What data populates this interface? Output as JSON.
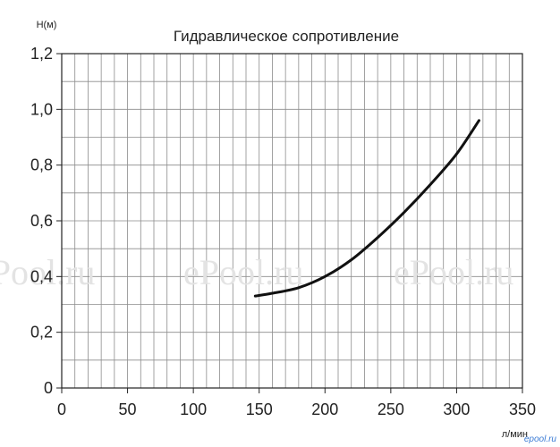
{
  "chart_data": {
    "type": "line",
    "title": "Гидравлическое сопротивление",
    "ylabel": "Н(м)",
    "xlabel": "л/мин",
    "xlim": [
      0,
      350
    ],
    "ylim": [
      0,
      1.2
    ],
    "grid": true,
    "xticks": [
      "0",
      "50",
      "100",
      "150",
      "200",
      "250",
      "300",
      "350"
    ],
    "yticks": [
      "0",
      "0,2",
      "0,4",
      "0,6",
      "0,8",
      "1,0",
      "1,2"
    ],
    "series": [
      {
        "x": [
          147,
          160,
          180,
          200,
          220,
          240,
          260,
          280,
          300,
          317
        ],
        "y": [
          0.33,
          0.34,
          0.36,
          0.4,
          0.46,
          0.54,
          0.63,
          0.73,
          0.84,
          0.96
        ]
      }
    ]
  },
  "watermarks": [
    "ePool.ru",
    "ePool.ru",
    "ePool.ru"
  ],
  "corner_mark": "epool.ru"
}
